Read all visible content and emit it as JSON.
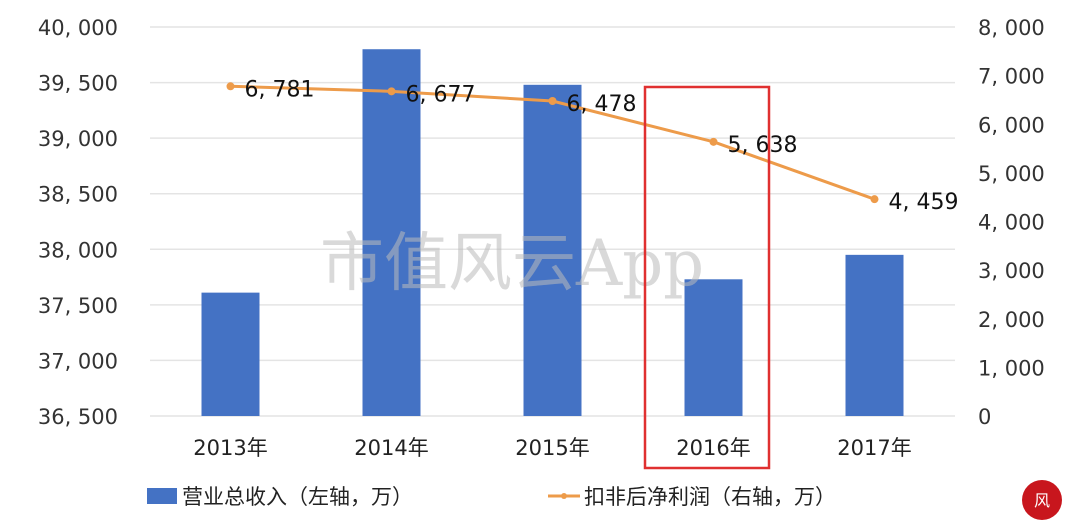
{
  "chart_data": {
    "type": "bar+line",
    "categories": [
      "2013年",
      "2014年",
      "2015年",
      "2016年",
      "2017年"
    ],
    "series": [
      {
        "name": "营业总收入（左轴，万）",
        "type": "bar",
        "axis": "left",
        "color": "#4472C4",
        "values": [
          37610,
          39800,
          39480,
          37730,
          37950
        ]
      },
      {
        "name": "扣非后净利润（右轴，万）",
        "type": "line",
        "axis": "right",
        "color": "#ED9B4A",
        "values": [
          6781,
          6677,
          6478,
          5638,
          4459
        ],
        "labels": [
          "6, 781",
          "6, 677",
          "6, 478",
          "5, 638",
          "4, 459"
        ]
      }
    ],
    "left_axis": {
      "range": [
        36500,
        40000
      ],
      "ticks": [
        "36, 500",
        "37, 000",
        "37, 500",
        "38, 000",
        "38, 500",
        "39, 000",
        "39, 500",
        "40, 000"
      ]
    },
    "right_axis": {
      "range": [
        0,
        8000
      ],
      "ticks": [
        "0",
        "1, 000",
        "2, 000",
        "3, 000",
        "4, 000",
        "5, 000",
        "6, 000",
        "7, 000",
        "8, 000"
      ]
    },
    "grid": true,
    "legend": "bottom",
    "highlight": {
      "category": "2016年",
      "color": "#E03030"
    },
    "watermark": "市值风云App"
  }
}
